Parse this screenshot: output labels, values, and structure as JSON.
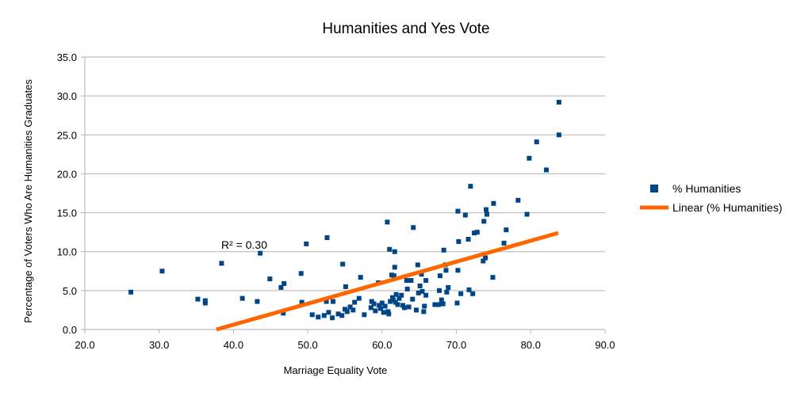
{
  "chart_data": {
    "type": "scatter",
    "title": "Humanities and Yes Vote",
    "xlabel": "Marriage Equality Vote",
    "ylabel": "Percentage of Voters Who Are Humanities Graduates",
    "xlim": [
      20,
      90
    ],
    "ylim": [
      0,
      35
    ],
    "x_ticks": [
      "20.0",
      "30.0",
      "40.0",
      "50.0",
      "60.0",
      "70.0",
      "80.0",
      "90.0"
    ],
    "y_ticks": [
      "0.0",
      "5.0",
      "10.0",
      "15.0",
      "20.0",
      "25.0",
      "30.0",
      "35.0"
    ],
    "grid": "horizontal",
    "legend_position": "right",
    "annotation": "R² = 0.30",
    "colors": {
      "marker": "#004586",
      "trendline": "#ff6600",
      "grid": "#b3b3b3"
    },
    "series": [
      {
        "name": "% Humanities",
        "marker": "square",
        "points": [
          [
            26.2,
            4.8
          ],
          [
            30.4,
            7.5
          ],
          [
            35.2,
            3.9
          ],
          [
            36.2,
            3.7
          ],
          [
            36.2,
            3.4
          ],
          [
            38.4,
            8.5
          ],
          [
            41.2,
            4.0
          ],
          [
            43.2,
            3.6
          ],
          [
            43.6,
            9.8
          ],
          [
            44.9,
            6.5
          ],
          [
            46.4,
            5.4
          ],
          [
            46.8,
            5.9
          ],
          [
            46.7,
            2.1
          ],
          [
            49.1,
            7.2
          ],
          [
            49.2,
            3.5
          ],
          [
            49.8,
            11.0
          ],
          [
            50.6,
            1.9
          ],
          [
            51.4,
            1.6
          ],
          [
            52.2,
            1.8
          ],
          [
            52.5,
            3.6
          ],
          [
            52.6,
            11.8
          ],
          [
            52.8,
            2.2
          ],
          [
            53.3,
            1.5
          ],
          [
            53.4,
            3.6
          ],
          [
            54.1,
            2.0
          ],
          [
            54.6,
            1.8
          ],
          [
            54.7,
            8.4
          ],
          [
            55.0,
            2.6
          ],
          [
            55.1,
            5.5
          ],
          [
            55.3,
            2.3
          ],
          [
            55.7,
            2.9
          ],
          [
            56.1,
            2.5
          ],
          [
            56.3,
            3.5
          ],
          [
            56.9,
            4.0
          ],
          [
            57.1,
            6.7
          ],
          [
            57.6,
            1.9
          ],
          [
            58.5,
            2.8
          ],
          [
            58.6,
            3.6
          ],
          [
            58.9,
            3.3
          ],
          [
            59.1,
            2.4
          ],
          [
            59.5,
            6.0
          ],
          [
            59.6,
            3.1
          ],
          [
            59.8,
            2.7
          ],
          [
            60.0,
            3.4
          ],
          [
            60.2,
            2.2
          ],
          [
            60.4,
            3.0
          ],
          [
            60.7,
            13.8
          ],
          [
            60.8,
            2.3
          ],
          [
            60.9,
            2.0
          ],
          [
            61.0,
            10.3
          ],
          [
            61.1,
            3.6
          ],
          [
            61.3,
            7.0
          ],
          [
            61.4,
            4.1
          ],
          [
            61.5,
            3.8
          ],
          [
            61.6,
            6.9
          ],
          [
            61.7,
            8.0
          ],
          [
            61.7,
            10.0
          ],
          [
            61.8,
            3.5
          ],
          [
            61.9,
            4.5
          ],
          [
            62.1,
            3.2
          ],
          [
            62.3,
            4.0
          ],
          [
            62.6,
            4.4
          ],
          [
            62.8,
            3.1
          ],
          [
            63.0,
            2.8
          ],
          [
            63.3,
            6.3
          ],
          [
            63.4,
            5.2
          ],
          [
            63.6,
            2.9
          ],
          [
            63.9,
            6.3
          ],
          [
            64.1,
            3.9
          ],
          [
            64.2,
            13.1
          ],
          [
            64.6,
            2.5
          ],
          [
            64.8,
            8.3
          ],
          [
            64.9,
            4.7
          ],
          [
            65.1,
            5.6
          ],
          [
            65.3,
            7.1
          ],
          [
            65.4,
            4.9
          ],
          [
            65.6,
            2.3
          ],
          [
            65.7,
            3.0
          ],
          [
            65.9,
            4.4
          ],
          [
            65.9,
            6.3
          ],
          [
            67.1,
            3.2
          ],
          [
            67.6,
            3.2
          ],
          [
            67.7,
            5.0
          ],
          [
            67.8,
            6.9
          ],
          [
            68.0,
            3.8
          ],
          [
            68.2,
            3.3
          ],
          [
            68.3,
            10.2
          ],
          [
            68.5,
            8.3
          ],
          [
            68.6,
            7.6
          ],
          [
            68.7,
            4.8
          ],
          [
            68.9,
            5.4
          ],
          [
            70.1,
            3.4
          ],
          [
            70.2,
            7.6
          ],
          [
            70.2,
            15.2
          ],
          [
            70.3,
            11.3
          ],
          [
            70.6,
            4.6
          ],
          [
            71.2,
            14.7
          ],
          [
            71.6,
            11.6
          ],
          [
            71.7,
            5.1
          ],
          [
            71.9,
            18.4
          ],
          [
            72.2,
            4.6
          ],
          [
            72.4,
            12.4
          ],
          [
            72.8,
            12.5
          ],
          [
            73.6,
            8.8
          ],
          [
            73.7,
            13.9
          ],
          [
            73.9,
            9.2
          ],
          [
            74.0,
            15.4
          ],
          [
            74.1,
            14.8
          ],
          [
            74.9,
            6.7
          ],
          [
            75.0,
            16.2
          ],
          [
            76.4,
            11.1
          ],
          [
            76.7,
            12.8
          ],
          [
            78.3,
            16.6
          ],
          [
            79.5,
            14.8
          ],
          [
            79.8,
            22.0
          ],
          [
            80.8,
            24.1
          ],
          [
            82.1,
            20.5
          ],
          [
            83.8,
            29.2
          ],
          [
            83.8,
            25.0
          ]
        ]
      },
      {
        "name": "Linear (% Humanities)",
        "type": "line",
        "points": [
          [
            37.7,
            0.0
          ],
          [
            83.7,
            12.4
          ]
        ]
      }
    ]
  }
}
